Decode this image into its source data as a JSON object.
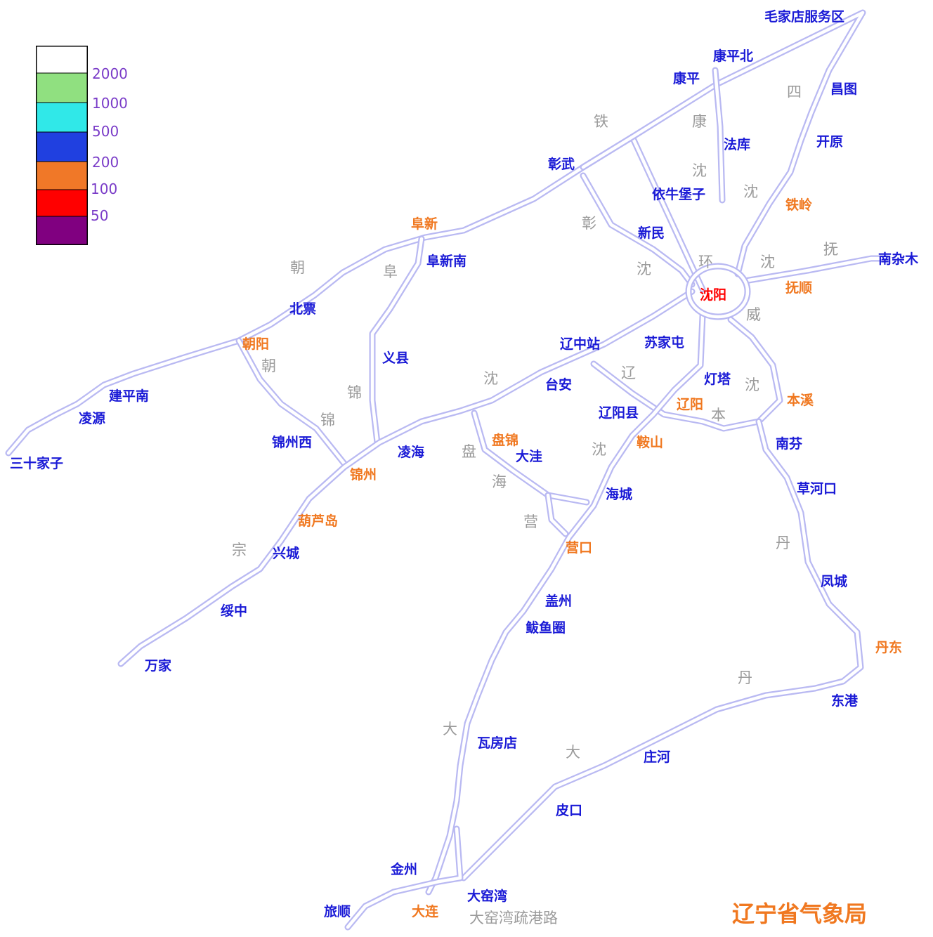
{
  "colors": {
    "city": "#1a1ad6",
    "major_city": "#f07820",
    "capital": "#ff0000",
    "road_char": "#9a9a9a",
    "legend_text": "#7a3cc8",
    "credit": "#f07820"
  },
  "legend": [
    {
      "value": "2000",
      "color": "#ffffff"
    },
    {
      "value": "1000",
      "color": "#90e080"
    },
    {
      "value": "500",
      "color": "#30e8e8"
    },
    {
      "value": "200",
      "color": "#2040e0"
    },
    {
      "value": "100",
      "color": "#f07828"
    },
    {
      "value": "50",
      "color": "#ff0000"
    },
    {
      "value": "",
      "color": "#800080"
    }
  ],
  "cities": [
    {
      "name": "毛家店服务区",
      "kind": "city"
    },
    {
      "name": "康平北",
      "kind": "city"
    },
    {
      "name": "康平",
      "kind": "city"
    },
    {
      "name": "昌图",
      "kind": "city"
    },
    {
      "name": "法库",
      "kind": "city"
    },
    {
      "name": "开原",
      "kind": "city"
    },
    {
      "name": "彰武",
      "kind": "city"
    },
    {
      "name": "依牛堡子",
      "kind": "city"
    },
    {
      "name": "铁岭",
      "kind": "major"
    },
    {
      "name": "阜新",
      "kind": "major"
    },
    {
      "name": "新民",
      "kind": "city"
    },
    {
      "name": "阜新南",
      "kind": "city"
    },
    {
      "name": "南杂木",
      "kind": "city"
    },
    {
      "name": "抚顺",
      "kind": "major"
    },
    {
      "name": "沈阳",
      "kind": "capital"
    },
    {
      "name": "北票",
      "kind": "city"
    },
    {
      "name": "朝阳",
      "kind": "major"
    },
    {
      "name": "辽中站",
      "kind": "city"
    },
    {
      "name": "苏家屯",
      "kind": "city"
    },
    {
      "name": "义县",
      "kind": "city"
    },
    {
      "name": "灯塔",
      "kind": "city"
    },
    {
      "name": "台安",
      "kind": "city"
    },
    {
      "name": "本溪",
      "kind": "major"
    },
    {
      "name": "建平南",
      "kind": "city"
    },
    {
      "name": "辽阳",
      "kind": "major"
    },
    {
      "name": "辽阳县",
      "kind": "city"
    },
    {
      "name": "凌源",
      "kind": "city"
    },
    {
      "name": "锦州西",
      "kind": "city"
    },
    {
      "name": "盘锦",
      "kind": "major"
    },
    {
      "name": "鞍山",
      "kind": "major"
    },
    {
      "name": "南芬",
      "kind": "city"
    },
    {
      "name": "凌海",
      "kind": "city"
    },
    {
      "name": "大洼",
      "kind": "city"
    },
    {
      "name": "三十家子",
      "kind": "city"
    },
    {
      "name": "锦州",
      "kind": "major"
    },
    {
      "name": "草河口",
      "kind": "city"
    },
    {
      "name": "海城",
      "kind": "city"
    },
    {
      "name": "葫芦岛",
      "kind": "major"
    },
    {
      "name": "营口",
      "kind": "major"
    },
    {
      "name": "兴城",
      "kind": "city"
    },
    {
      "name": "凤城",
      "kind": "city"
    },
    {
      "name": "盖州",
      "kind": "city"
    },
    {
      "name": "绥中",
      "kind": "city"
    },
    {
      "name": "鲅鱼圈",
      "kind": "city"
    },
    {
      "name": "丹东",
      "kind": "major"
    },
    {
      "name": "万家",
      "kind": "city"
    },
    {
      "name": "东港",
      "kind": "city"
    },
    {
      "name": "瓦房店",
      "kind": "city"
    },
    {
      "name": "庄河",
      "kind": "city"
    },
    {
      "name": "皮口",
      "kind": "city"
    },
    {
      "name": "金州",
      "kind": "city"
    },
    {
      "name": "大窑湾",
      "kind": "city"
    },
    {
      "name": "旅顺",
      "kind": "city"
    },
    {
      "name": "大连",
      "kind": "major"
    }
  ],
  "road_chars": [
    "四",
    "铁",
    "康",
    "沈",
    "沈",
    "彰",
    "朝",
    "阜",
    "沈",
    "环",
    "沈",
    "抚",
    "威",
    "朝",
    "锦",
    "沈",
    "辽",
    "沈",
    "锦",
    "本",
    "盘",
    "沈",
    "海",
    "营",
    "丹",
    "宗",
    "丹",
    "大",
    "大",
    "大窑湾疏港路"
  ],
  "credit": "辽宁省气象局"
}
